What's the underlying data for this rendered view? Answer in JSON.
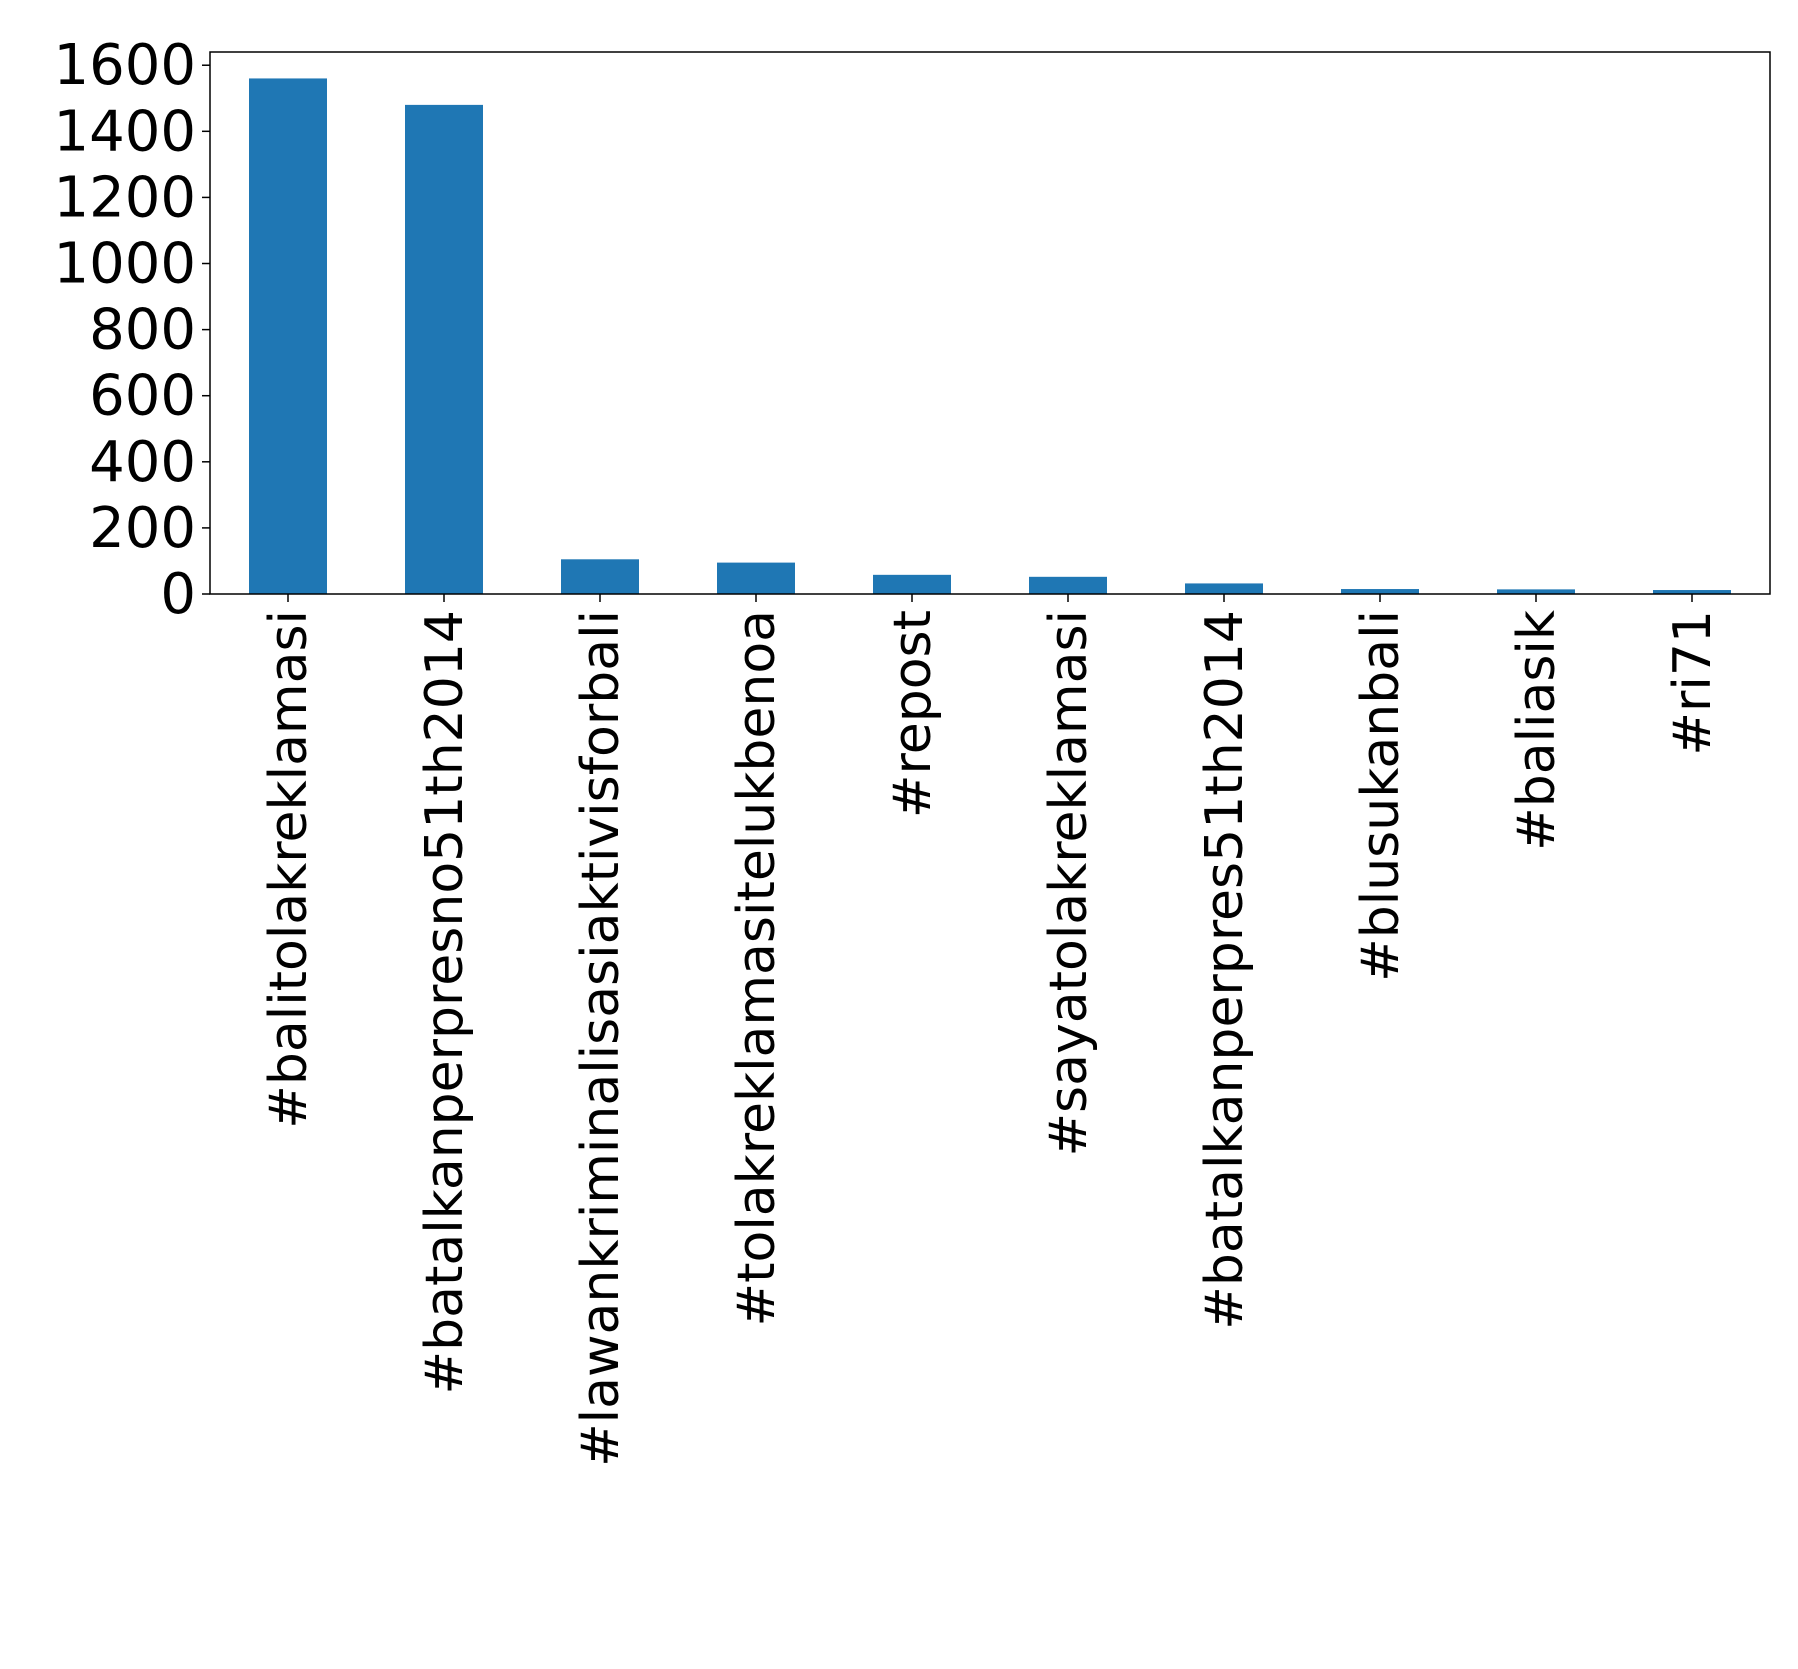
{
  "chart_data": {
    "type": "bar",
    "title": "",
    "xlabel": "",
    "ylabel": "",
    "categories": [
      "#balitolakreklamasi",
      "#batalkanperpresno51th2014",
      "#lawankriminalisasiaktivisforbali",
      "#tolakreklamasitelukbenoa",
      "#repost",
      "#sayatolakreklamasi",
      "#batalkanperpres51th2014",
      "#blusukanbali",
      "#baliasik",
      "#ri71"
    ],
    "values": [
      1560,
      1480,
      105,
      95,
      58,
      52,
      32,
      15,
      14,
      12
    ],
    "ylim": [
      0,
      1640
    ],
    "yticks": [
      0,
      200,
      400,
      600,
      800,
      1000,
      1200,
      1400,
      1600
    ],
    "grid": false,
    "legend": "none",
    "colors": {
      "bar": "#1f77b4",
      "axis": "#000000"
    }
  }
}
